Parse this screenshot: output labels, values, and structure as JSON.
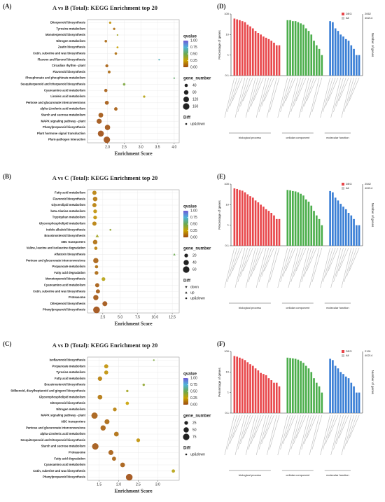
{
  "chart_data": [
    {
      "type": "bubble",
      "panel": "(A)",
      "title": "A vs B (Total): KEGG Enrichment top 20",
      "xlabel": "Enrichment Score",
      "categories": [
        "Diterpenoid biosynthesis",
        "Tyrosine metabolism",
        "Monoterpenoid biosynthesis",
        "Nitrogen metabolism",
        "Zeatin biosynthesis",
        "Cutin, suberine and wax biosynthesis",
        "Flavone and flavonol biosynthesis",
        "Circadian rhythm - plant",
        "Flavonoid biosynthesis",
        "Phosphonate and phosphinate metabolism",
        "Sesquiterpenoid and triterpenoid biosynthesis",
        "Cyanoamino acid metabolism",
        "Linoleic acid metabolism",
        "Pentose and glucuronate interconversions",
        "alpha-Linolenic acid metabolism",
        "Starch and sucrose metabolism",
        "MAPK signaling pathway - plant",
        "Phenylpropanoid biosynthesis",
        "Plant hormone signal transduction",
        "Plant-pathogen interaction"
      ],
      "values": [
        2.08,
        2.2,
        2.3,
        1.95,
        2.3,
        2.25,
        3.55,
        1.98,
        2.05,
        4.0,
        2.5,
        1.95,
        3.1,
        1.98,
        2.25,
        1.8,
        1.75,
        2.0,
        1.8,
        1.98
      ],
      "sizes": [
        20,
        20,
        10,
        25,
        15,
        25,
        10,
        35,
        30,
        10,
        25,
        40,
        20,
        60,
        45,
        90,
        100,
        110,
        140,
        160
      ],
      "qvalues": [
        0.2,
        0.1,
        0.35,
        0.08,
        0.25,
        0.1,
        0.7,
        0.06,
        0.08,
        0.55,
        0.45,
        0.05,
        0.3,
        0.04,
        0.05,
        0.03,
        0.02,
        0.02,
        0.01,
        0.01
      ],
      "diff": [
        "up&down",
        "up&down",
        "up&down",
        "up&down",
        "up&down",
        "up&down",
        "up&down",
        "up&down",
        "up&down",
        "up&down",
        "up&down",
        "up&down",
        "up&down",
        "up&down",
        "up&down",
        "up&down",
        "up&down",
        "up&down",
        "up&down",
        "up&down"
      ],
      "xlim": [
        1.4,
        4.15
      ],
      "xticks": [
        {
          "value": 2,
          "label": "2.0"
        },
        2.5,
        {
          "value": 3,
          "label": "3.0"
        },
        3.5,
        {
          "value": 4,
          "label": "4.0"
        }
      ],
      "grid": true,
      "size_title": "gene_number",
      "size_legend": [
        40,
        80,
        120,
        160
      ],
      "color_title": "qvalue",
      "qlim": [
        0,
        1
      ],
      "qticks": [
        {
          "value": 0,
          "label": "0.00"
        },
        0.25,
        {
          "value": 0.5,
          "label": "0.50"
        },
        0.75,
        {
          "value": 1,
          "label": "1.00"
        }
      ],
      "colorscale": [
        "#9c4a12",
        "#c9a100",
        "#6aa84f",
        "#4fb3d9",
        "#6f5bd6"
      ],
      "diff_title": "Diff",
      "diff_legend": [
        "up&down"
      ]
    },
    {
      "type": "bubble",
      "panel": "(B)",
      "title": "A vs C (Total): KEGG Enrichment top 20",
      "xlabel": "Enrichment Score",
      "categories": [
        "Fatty acid metabolism",
        "Flavonoid biosynthesis",
        "Glycerolipid metabolism",
        "beta-Alanine metabolism",
        "Tryptophan metabolism",
        "Glycerophospholipid metabolism",
        "Indole alkaloid biosynthesis",
        "Brassinosteroid biosynthesis",
        "ABC transporters",
        "Valine, leucine and isoleucine degradation",
        "Aflatoxin biosynthesis",
        "Pentose and glucuronate interconversions",
        "Propanoate metabolism",
        "Fatty acid degradation",
        "Monoterpenoid biosynthesis",
        "Cyanoamino acid metabolism",
        "Cutin, suberine and wax biosynthesis",
        "Proteasome",
        "Diterpenoid biosynthesis",
        "Phenylpropanoid biosynthesis"
      ],
      "values": [
        1.3,
        1.4,
        1.3,
        1.4,
        1.4,
        1.3,
        3.6,
        1.7,
        1.4,
        1.5,
        12.8,
        1.5,
        1.6,
        1.6,
        2.6,
        1.7,
        1.8,
        1.5,
        2.8,
        1.6
      ],
      "sizes": [
        25,
        30,
        25,
        20,
        20,
        25,
        5,
        10,
        30,
        15,
        5,
        40,
        15,
        20,
        20,
        25,
        25,
        40,
        35,
        65
      ],
      "qvalues": [
        0.15,
        0.12,
        0.15,
        0.2,
        0.2,
        0.15,
        0.4,
        0.35,
        0.1,
        0.15,
        0.5,
        0.06,
        0.1,
        0.08,
        0.3,
        0.05,
        0.04,
        0.03,
        0.02,
        0.01
      ],
      "diff": [
        "up&down",
        "up&down",
        "up&down",
        "up&down",
        "up&down",
        "up&down",
        "up&down",
        "up",
        "up&down",
        "up&down",
        "up",
        "up&down",
        "up&down",
        "up&down",
        "up&down",
        "up&down",
        "up&down",
        "up&down",
        "up&down",
        "up&down"
      ],
      "xlim": [
        0.3,
        13.5
      ],
      "xticks": [
        2.5,
        {
          "value": 5,
          "label": "5.0"
        },
        7.5,
        {
          "value": 10,
          "label": "10.0"
        },
        12.5
      ],
      "grid": true,
      "size_title": "gene_number",
      "size_legend": [
        20,
        40,
        60
      ],
      "color_title": "qvalue",
      "qlim": [
        0,
        1
      ],
      "qticks": [
        {
          "value": 0,
          "label": "0.00"
        },
        0.25,
        {
          "value": 0.5,
          "label": "0.50"
        },
        0.75,
        {
          "value": 1,
          "label": "1.00"
        }
      ],
      "colorscale": [
        "#9c4a12",
        "#c9a100",
        "#6aa84f",
        "#4fb3d9",
        "#6f5bd6"
      ],
      "diff_title": "Diff",
      "diff_legend": [
        "down",
        "up",
        "up&down"
      ]
    },
    {
      "type": "bubble",
      "panel": "(C)",
      "title": "A vs D (Total): KEGG Enrichment top 20",
      "xlabel": "Enrichment Score",
      "categories": [
        "Isoflavonoid biosynthesis",
        "Propanoate metabolism",
        "Tyrosine metabolism",
        "Fatty acid metabolism",
        "Brassinosteroid biosynthesis",
        "Stilbenoid, diarylheptanoid and gingerol biosynthesis",
        "Glycerophospholipid metabolism",
        "Diterpenoid biosynthesis",
        "Nitrogen metabolism",
        "MAPK signaling pathway - plant",
        "ABC transporters",
        "Pentose and glucuronate interconversions",
        "alpha-Linolenic acid metabolism",
        "Sesquiterpenoid and triterpenoid biosynthesis",
        "Starch and sucrose metabolism",
        "Proteasome",
        "Fatty acid degradation",
        "Cyanoamino acid metabolism",
        "Cutin, suberine and wax biosynthesis",
        "Phenylpropanoid biosynthesis"
      ],
      "values": [
        2.9,
        1.68,
        1.68,
        1.52,
        2.64,
        2.22,
        1.52,
        2.22,
        1.9,
        1.38,
        1.7,
        1.6,
        1.94,
        2.5,
        1.4,
        1.8,
        1.88,
        2.1,
        3.4,
        2.27
      ],
      "sizes": [
        5,
        30,
        30,
        35,
        10,
        10,
        40,
        20,
        25,
        70,
        45,
        50,
        40,
        25,
        75,
        45,
        30,
        40,
        20,
        80
      ],
      "qvalues": [
        0.45,
        0.2,
        0.2,
        0.15,
        0.4,
        0.35,
        0.12,
        0.25,
        0.15,
        0.05,
        0.08,
        0.06,
        0.1,
        0.2,
        0.03,
        0.05,
        0.06,
        0.05,
        0.3,
        0.01
      ],
      "diff": [
        "up&down",
        "up&down",
        "up&down",
        "up&down",
        "up&down",
        "up&down",
        "up&down",
        "up&down",
        "up&down",
        "up&down",
        "up&down",
        "up&down",
        "up&down",
        "up&down",
        "up&down",
        "up&down",
        "up&down",
        "up&down",
        "up&down",
        "up&down"
      ],
      "xlim": [
        1.2,
        3.55
      ],
      "xticks": [
        1.5,
        {
          "value": 2,
          "label": "2.0"
        },
        2.5,
        {
          "value": 3,
          "label": "3.0"
        }
      ],
      "grid": true,
      "size_title": "gene_number",
      "size_legend": [
        25,
        50,
        75
      ],
      "color_title": "qvalue",
      "qlim": [
        0,
        1
      ],
      "qticks": [
        {
          "value": 0,
          "label": "0.00"
        },
        0.25,
        {
          "value": 0.5,
          "label": "0.50"
        },
        0.75,
        {
          "value": 1,
          "label": "1.00"
        }
      ],
      "colorscale": [
        "#9c4a12",
        "#c9a100",
        "#6aa84f",
        "#4fb3d9",
        "#6f5bd6"
      ],
      "diff_title": "Diff",
      "diff_legend": [
        "up&down"
      ]
    },
    {
      "type": "go_bar",
      "panel": "(D)",
      "ylabel": "Percentage of genes",
      "y2label": "Number of genes",
      "log_scale": true,
      "ylim": [
        0.1,
        100
      ],
      "yticks": [
        0.1,
        1,
        10,
        100
      ],
      "series": [
        {
          "name": "biological process",
          "color": "#e8474b",
          "values": [
            60,
            55,
            50,
            45,
            40,
            30,
            25,
            20,
            15,
            12,
            10,
            8,
            7,
            6,
            5,
            4,
            3,
            3
          ]
        },
        {
          "name": "cellular component",
          "color": "#4cae4c",
          "values": [
            50,
            50,
            45,
            45,
            40,
            35,
            30,
            20,
            15,
            10,
            5,
            3,
            2,
            1
          ]
        },
        {
          "name": "molecular function",
          "color": "#3a7fd5",
          "values": [
            45,
            40,
            20,
            15,
            10,
            8,
            6,
            5,
            3,
            2,
            1,
            1
          ]
        }
      ],
      "legend": [
        {
          "name": "DEG",
          "count": 2062,
          "color": "#e8474b"
        },
        {
          "name": "All",
          "count": 40214,
          "color": "#c8c8c8"
        }
      ]
    },
    {
      "type": "go_bar",
      "panel": "(E)",
      "ylabel": "Percentage of genes",
      "y2label": "Number of genes",
      "log_scale": true,
      "ylim": [
        0.1,
        100
      ],
      "yticks": [
        0.1,
        1,
        10,
        100
      ],
      "series": [
        {
          "name": "biological process",
          "color": "#e8474b",
          "values": [
            62,
            58,
            52,
            48,
            40,
            32,
            26,
            22,
            16,
            13,
            10,
            8,
            6,
            5,
            4,
            3,
            2,
            2
          ]
        },
        {
          "name": "cellular component",
          "color": "#4cae4c",
          "values": [
            52,
            50,
            46,
            44,
            40,
            34,
            28,
            18,
            14,
            9,
            5,
            3,
            2,
            1
          ]
        },
        {
          "name": "molecular function",
          "color": "#3a7fd5",
          "values": [
            46,
            40,
            22,
            16,
            11,
            8,
            6,
            4,
            3,
            2,
            1,
            1
          ]
        }
      ],
      "legend": [
        {
          "name": "DEG",
          "count": 2542,
          "color": "#e8474b"
        },
        {
          "name": "All",
          "count": 40214,
          "color": "#c8c8c8"
        }
      ]
    },
    {
      "type": "go_bar",
      "panel": "(F)",
      "ylabel": "Percentage of genes",
      "y2label": "Number of genes",
      "log_scale": true,
      "ylim": [
        0.1,
        100
      ],
      "yticks": [
        0.1,
        1,
        10,
        100
      ],
      "series": [
        {
          "name": "biological process",
          "color": "#e8474b",
          "values": [
            60,
            56,
            50,
            44,
            38,
            30,
            24,
            20,
            15,
            12,
            9,
            8,
            7,
            5,
            4,
            3,
            3,
            2
          ]
        },
        {
          "name": "cellular component",
          "color": "#4cae4c",
          "values": [
            50,
            48,
            46,
            44,
            40,
            34,
            28,
            20,
            15,
            10,
            5,
            3,
            2,
            1
          ]
        },
        {
          "name": "molecular function",
          "color": "#3a7fd5",
          "values": [
            44,
            38,
            20,
            15,
            10,
            8,
            6,
            5,
            3,
            2,
            1,
            1
          ]
        }
      ],
      "legend": [
        {
          "name": "DEG",
          "count": 2191,
          "color": "#e8474b"
        },
        {
          "name": "All",
          "count": 40214,
          "color": "#c8c8c8"
        }
      ]
    }
  ]
}
